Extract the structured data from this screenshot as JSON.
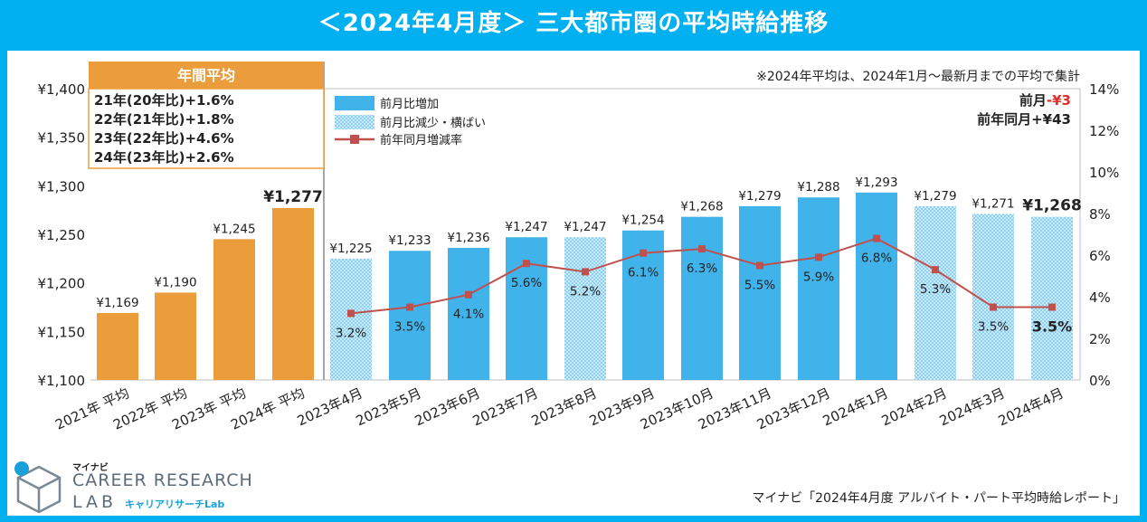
{
  "title": "＜2024年4月度＞ 三大都市圏の平均時給推移",
  "note": "※2024年平均は、2024年1月～最新月までの平均で集計",
  "annual_box": {
    "header": "年間平均",
    "lines": [
      "21年(20年比)+1.6%",
      "22年(21年比)+1.8%",
      "23年(22年比)+4.6%",
      "24年(23年比)+2.6%"
    ]
  },
  "delta": {
    "mom_label": "前月",
    "mom_value": "-¥3",
    "yoy_text": "前年同月+¥43"
  },
  "legend": [
    "前月比増加",
    "前月比減少・横ばい",
    "前年同月増減率"
  ],
  "logo": {
    "maker": "マイナビ",
    "line1": "CAREER RESEARCH",
    "line2": "LAB",
    "sub": "キャリアリサーチLab"
  },
  "source": "マイナビ「2024年4月度 アルバイト・パート平均時給レポート」",
  "colors": {
    "annual": "#eb9d3c",
    "increase": "#3fb3ea",
    "decrease": "#a9dcf5",
    "line": "#c0504d",
    "accent_red": "#e32b2b",
    "banner": "#00b0f0"
  },
  "chart_data": {
    "type": "bar",
    "categories": [
      "2021年 平均",
      "2022年 平均",
      "2023年 平均",
      "2024年 平均",
      "2023年4月",
      "2023年5月",
      "2023年6月",
      "2023年7月",
      "2023年8月",
      "2023年9月",
      "2023年10月",
      "2023年11月",
      "2023年12月",
      "2024年1月",
      "2024年2月",
      "2024年3月",
      "2024年4月"
    ],
    "values": [
      1169,
      1190,
      1245,
      1277,
      1225,
      1233,
      1236,
      1247,
      1247,
      1254,
      1268,
      1279,
      1288,
      1293,
      1279,
      1271,
      1268
    ],
    "value_labels": [
      "¥1,169",
      "¥1,190",
      "¥1,245",
      "¥1,277",
      "¥1,225",
      "¥1,233",
      "¥1,236",
      "¥1,247",
      "¥1,247",
      "¥1,254",
      "¥1,268",
      "¥1,279",
      "¥1,288",
      "¥1,293",
      "¥1,279",
      "¥1,271",
      "¥1,268"
    ],
    "bar_kind": [
      "annual",
      "annual",
      "annual",
      "annual",
      "decrease",
      "increase",
      "increase",
      "increase",
      "decrease",
      "increase",
      "increase",
      "increase",
      "increase",
      "increase",
      "decrease",
      "decrease",
      "decrease"
    ],
    "ylim": [
      1100,
      1400
    ],
    "yticks": [
      1100,
      1150,
      1200,
      1250,
      1300,
      1350,
      1400
    ],
    "ytick_labels": [
      "¥1,100",
      "¥1,150",
      "¥1,200",
      "¥1,250",
      "¥1,300",
      "¥1,350",
      "¥1,400"
    ],
    "line_series": {
      "name": "前年同月増減率",
      "start_index": 4,
      "values": [
        3.2,
        3.5,
        4.1,
        5.6,
        5.2,
        6.1,
        6.3,
        5.5,
        5.9,
        6.8,
        5.3,
        3.5,
        3.5
      ],
      "labels": [
        "3.2%",
        "3.5%",
        "4.1%",
        "5.6%",
        "5.2%",
        "6.1%",
        "6.3%",
        "5.5%",
        "5.9%",
        "6.8%",
        "5.3%",
        "3.5%",
        "3.5%"
      ]
    },
    "y2lim": [
      0,
      14
    ],
    "y2ticks": [
      0,
      2,
      4,
      6,
      8,
      10,
      12,
      14
    ],
    "y2tick_labels": [
      "0%",
      "2%",
      "4%",
      "6%",
      "8%",
      "10%",
      "12%",
      "14%"
    ]
  }
}
